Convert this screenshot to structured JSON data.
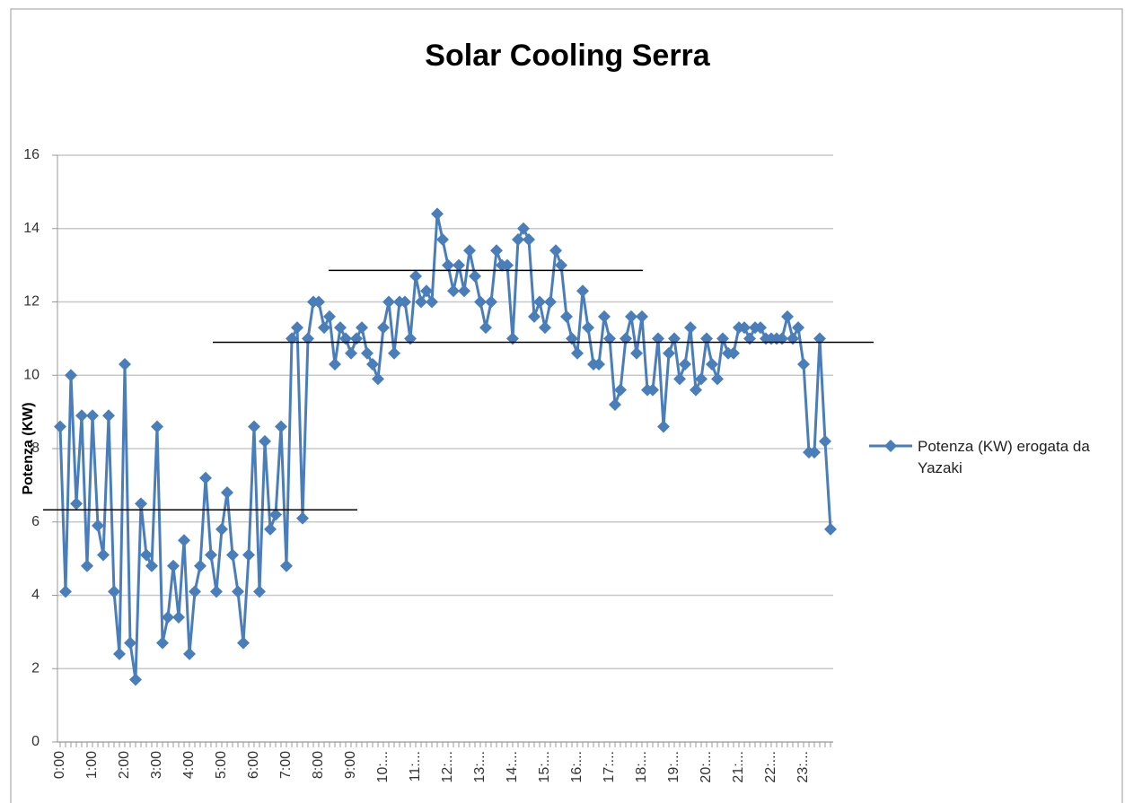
{
  "chart_data": {
    "type": "line",
    "title": "Solar Cooling Serra",
    "y_label": "Potenza (KW)",
    "categories": [
      "0:00",
      null,
      null,
      null,
      null,
      null,
      "1:00",
      null,
      null,
      null,
      null,
      null,
      "2:00",
      null,
      null,
      null,
      null,
      null,
      "3:00",
      null,
      null,
      null,
      null,
      null,
      "4:00",
      null,
      null,
      null,
      null,
      null,
      "5:00",
      null,
      null,
      null,
      null,
      null,
      "6:00",
      null,
      null,
      null,
      null,
      null,
      "7:00",
      null,
      null,
      null,
      null,
      null,
      "8:00",
      null,
      null,
      null,
      null,
      null,
      "9:00",
      null,
      null,
      null,
      null,
      null,
      "10:...",
      null,
      null,
      null,
      null,
      null,
      "11:...",
      null,
      null,
      null,
      null,
      null,
      "12:...",
      null,
      null,
      null,
      null,
      null,
      "13:...",
      null,
      null,
      null,
      null,
      null,
      "14:...",
      null,
      null,
      null,
      null,
      null,
      "15:...",
      null,
      null,
      null,
      null,
      null,
      "16:...",
      null,
      null,
      null,
      null,
      null,
      "17:...",
      null,
      null,
      null,
      null,
      null,
      "18:...",
      null,
      null,
      null,
      null,
      null,
      "19:...",
      null,
      null,
      null,
      null,
      null,
      "20:...",
      null,
      null,
      null,
      null,
      null,
      "21:...",
      null,
      null,
      null,
      null,
      null,
      "22:...",
      null,
      null,
      null,
      null,
      null,
      "23:...",
      null,
      null,
      null,
      null,
      null
    ],
    "series": [
      {
        "name": "Potenza (KW) erogata da Yazaki",
        "color": "#4a7ebb",
        "values": [
          8.6,
          4.1,
          10.0,
          6.5,
          8.9,
          4.8,
          8.9,
          5.9,
          5.1,
          8.9,
          4.1,
          2.4,
          10.3,
          2.7,
          1.7,
          6.5,
          5.1,
          4.8,
          8.6,
          2.7,
          3.4,
          4.8,
          3.4,
          5.5,
          2.4,
          4.1,
          4.8,
          7.2,
          5.1,
          4.1,
          5.8,
          6.8,
          5.1,
          4.1,
          2.7,
          5.1,
          8.6,
          4.1,
          8.2,
          5.8,
          6.2,
          8.6,
          4.8,
          11.0,
          11.3,
          6.1,
          11.0,
          12.0,
          12.0,
          11.3,
          11.6,
          10.3,
          11.3,
          11.0,
          10.6,
          11.0,
          11.3,
          10.6,
          10.3,
          9.9,
          11.3,
          12.0,
          10.6,
          12.0,
          12.0,
          11.0,
          12.7,
          12.0,
          12.3,
          12.0,
          14.4,
          13.7,
          13.0,
          12.3,
          13.0,
          12.3,
          13.4,
          12.7,
          12.0,
          11.3,
          12.0,
          13.4,
          13.0,
          13.0,
          11.0,
          13.7,
          14.0,
          13.7,
          11.6,
          12.0,
          11.3,
          12.0,
          13.4,
          13.0,
          11.6,
          11.0,
          10.6,
          12.3,
          11.3,
          10.3,
          10.3,
          11.6,
          11.0,
          9.2,
          9.6,
          11.0,
          11.6,
          10.6,
          11.6,
          9.6,
          9.6,
          11.0,
          8.6,
          10.6,
          11.0,
          9.9,
          10.3,
          11.3,
          9.6,
          9.9,
          11.0,
          10.3,
          9.9,
          11.0,
          10.6,
          10.6,
          11.3,
          11.3,
          11.0,
          11.3,
          11.3,
          11.0,
          11.0,
          11.0,
          11.0,
          11.6,
          11.0,
          11.3,
          10.3,
          7.9,
          7.9,
          11.0,
          8.2,
          5.8
        ]
      }
    ],
    "reference_lines": [
      6.33,
      10.9,
      12.86
    ],
    "ylim": [
      0,
      16
    ],
    "yticks": [
      0,
      2,
      4,
      6,
      8,
      10,
      12,
      14,
      16
    ],
    "grid": true,
    "legend": "right"
  }
}
